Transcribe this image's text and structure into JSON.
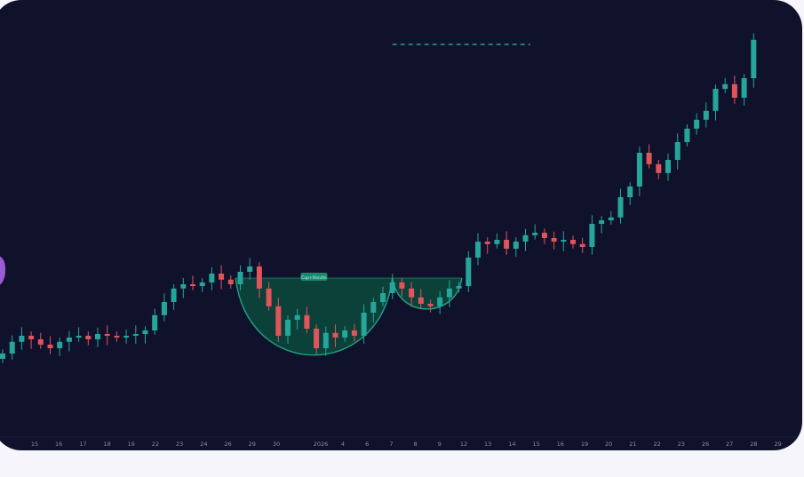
{
  "chart_data": {
    "type": "candlestick",
    "title": "",
    "xlabel": "",
    "ylabel": "",
    "grid": false,
    "colors": {
      "up": "#26a69a",
      "down": "#e0545a",
      "background": "#10122b",
      "pattern_fill": "#0c4a3d",
      "pattern_stroke": "#1fa98a",
      "marker": "#9b5bd6"
    },
    "x_tick_labels": [
      "15",
      "16",
      "17",
      "18",
      "19",
      "22",
      "23",
      "24",
      "26",
      "29",
      "30",
      "2026",
      "4",
      "6",
      "7",
      "8",
      "9",
      "12",
      "13",
      "14",
      "15",
      "16",
      "19",
      "20",
      "21",
      "22",
      "23",
      "26",
      "27",
      "28",
      "29"
    ],
    "close": [
      25.5,
      28.8,
      30.5,
      29.5,
      28,
      27,
      28.8,
      30,
      30.5,
      29.5,
      31,
      30.5,
      30,
      30.5,
      31,
      32,
      36.3,
      40,
      43.8,
      45,
      44.5,
      45.5,
      48,
      46.3,
      45,
      48.5,
      50,
      43.8,
      38.8,
      30.5,
      35,
      36.3,
      32.5,
      27,
      31.3,
      30,
      32,
      30.5,
      37,
      40,
      42.5,
      45.5,
      43.8,
      41.3,
      39.5,
      38.8,
      41.3,
      43.8,
      44.5,
      52.5,
      57,
      56.3,
      57.5,
      55,
      57,
      58.8,
      59.5,
      58,
      57,
      57.5,
      56.3,
      55.5,
      62,
      63,
      63.8,
      69.5,
      72.5,
      82,
      78.8,
      76.3,
      80,
      85,
      88.8,
      91.3,
      93.8,
      100,
      101.3,
      97.5,
      103,
      113.8
    ],
    "first_open": 24,
    "annotations": [
      {
        "type": "cup",
        "label": "Cup+Handle",
        "start_index": 24.5,
        "end_index": 41,
        "rim": 46.75,
        "bottom": 25
      },
      {
        "type": "handle",
        "start_index": 41,
        "end_index": 48.3,
        "rim": 46.75,
        "bottom": 38
      },
      {
        "type": "dashed-target",
        "start_index": 41,
        "end_index": 55.5,
        "value": 112.5
      }
    ]
  }
}
